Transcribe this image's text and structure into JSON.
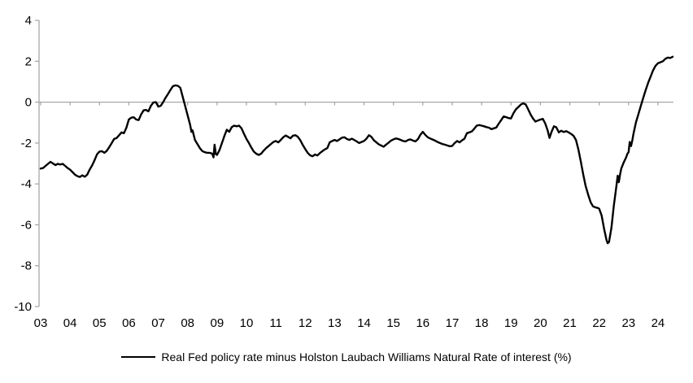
{
  "chart_data": {
    "type": "line",
    "title": "",
    "xlabel": "",
    "ylabel": "",
    "grid": "zero-line-only",
    "legend_position": "bottom-center",
    "background_color": "#ffffff",
    "axis_color": "#a8a8a8",
    "text_color": "#000000",
    "ylim": [
      -10,
      4
    ],
    "xlim": [
      2003.0,
      2024.58
    ],
    "y_ticks": [
      4,
      2,
      0,
      -2,
      -4,
      -6,
      -8,
      -10
    ],
    "x_tick_labels": [
      "03",
      "04",
      "05",
      "06",
      "07",
      "08",
      "09",
      "10",
      "11",
      "12",
      "13",
      "14",
      "15",
      "16",
      "17",
      "18",
      "19",
      "20",
      "21",
      "22",
      "23",
      "24"
    ],
    "series": [
      {
        "name": "Real Fed policy rate minus Holston Laubach Williams Natural Rate of interest (%)",
        "color": "#000000",
        "points": [
          [
            2003.0,
            -3.25
          ],
          [
            2003.083,
            -3.22
          ],
          [
            2003.167,
            -3.12
          ],
          [
            2003.25,
            -3.02
          ],
          [
            2003.333,
            -2.92
          ],
          [
            2003.417,
            -3.0
          ],
          [
            2003.5,
            -3.08
          ],
          [
            2003.583,
            -3.02
          ],
          [
            2003.667,
            -3.05
          ],
          [
            2003.75,
            -3.02
          ],
          [
            2003.833,
            -3.12
          ],
          [
            2003.917,
            -3.22
          ],
          [
            2004.0,
            -3.3
          ],
          [
            2004.083,
            -3.42
          ],
          [
            2004.167,
            -3.55
          ],
          [
            2004.25,
            -3.62
          ],
          [
            2004.333,
            -3.66
          ],
          [
            2004.417,
            -3.58
          ],
          [
            2004.5,
            -3.65
          ],
          [
            2004.583,
            -3.55
          ],
          [
            2004.667,
            -3.3
          ],
          [
            2004.75,
            -3.1
          ],
          [
            2004.833,
            -2.85
          ],
          [
            2004.917,
            -2.55
          ],
          [
            2005.0,
            -2.42
          ],
          [
            2005.083,
            -2.4
          ],
          [
            2005.167,
            -2.48
          ],
          [
            2005.25,
            -2.38
          ],
          [
            2005.333,
            -2.2
          ],
          [
            2005.417,
            -2.0
          ],
          [
            2005.5,
            -1.8
          ],
          [
            2005.583,
            -1.76
          ],
          [
            2005.667,
            -1.62
          ],
          [
            2005.75,
            -1.48
          ],
          [
            2005.833,
            -1.52
          ],
          [
            2005.917,
            -1.25
          ],
          [
            2006.0,
            -0.85
          ],
          [
            2006.083,
            -0.76
          ],
          [
            2006.167,
            -0.74
          ],
          [
            2006.25,
            -0.85
          ],
          [
            2006.333,
            -0.88
          ],
          [
            2006.417,
            -0.6
          ],
          [
            2006.5,
            -0.4
          ],
          [
            2006.583,
            -0.38
          ],
          [
            2006.667,
            -0.45
          ],
          [
            2006.75,
            -0.18
          ],
          [
            2006.833,
            -0.02
          ],
          [
            2006.917,
            0.0
          ],
          [
            2007.0,
            -0.22
          ],
          [
            2007.083,
            -0.18
          ],
          [
            2007.167,
            0.0
          ],
          [
            2007.25,
            0.22
          ],
          [
            2007.333,
            0.4
          ],
          [
            2007.417,
            0.6
          ],
          [
            2007.5,
            0.78
          ],
          [
            2007.583,
            0.82
          ],
          [
            2007.667,
            0.8
          ],
          [
            2007.75,
            0.7
          ],
          [
            2007.833,
            0.25
          ],
          [
            2007.917,
            -0.2
          ],
          [
            2008.0,
            -0.65
          ],
          [
            2008.083,
            -1.1
          ],
          [
            2008.13,
            -1.45
          ],
          [
            2008.167,
            -1.38
          ],
          [
            2008.25,
            -1.85
          ],
          [
            2008.333,
            -2.05
          ],
          [
            2008.417,
            -2.25
          ],
          [
            2008.5,
            -2.4
          ],
          [
            2008.583,
            -2.45
          ],
          [
            2008.667,
            -2.48
          ],
          [
            2008.75,
            -2.48
          ],
          [
            2008.833,
            -2.52
          ],
          [
            2008.88,
            -2.7
          ],
          [
            2008.917,
            -2.08
          ],
          [
            2008.96,
            -2.55
          ],
          [
            2009.0,
            -2.58
          ],
          [
            2009.083,
            -2.35
          ],
          [
            2009.167,
            -2.0
          ],
          [
            2009.25,
            -1.65
          ],
          [
            2009.333,
            -1.35
          ],
          [
            2009.417,
            -1.45
          ],
          [
            2009.5,
            -1.22
          ],
          [
            2009.583,
            -1.15
          ],
          [
            2009.667,
            -1.18
          ],
          [
            2009.75,
            -1.15
          ],
          [
            2009.833,
            -1.28
          ],
          [
            2009.917,
            -1.55
          ],
          [
            2010.0,
            -1.8
          ],
          [
            2010.083,
            -2.0
          ],
          [
            2010.167,
            -2.22
          ],
          [
            2010.25,
            -2.42
          ],
          [
            2010.333,
            -2.52
          ],
          [
            2010.417,
            -2.58
          ],
          [
            2010.5,
            -2.52
          ],
          [
            2010.583,
            -2.38
          ],
          [
            2010.667,
            -2.25
          ],
          [
            2010.75,
            -2.15
          ],
          [
            2010.833,
            -2.05
          ],
          [
            2010.917,
            -1.95
          ],
          [
            2011.0,
            -1.9
          ],
          [
            2011.083,
            -1.97
          ],
          [
            2011.167,
            -1.85
          ],
          [
            2011.25,
            -1.72
          ],
          [
            2011.333,
            -1.63
          ],
          [
            2011.417,
            -1.7
          ],
          [
            2011.5,
            -1.77
          ],
          [
            2011.583,
            -1.64
          ],
          [
            2011.667,
            -1.62
          ],
          [
            2011.75,
            -1.7
          ],
          [
            2011.833,
            -1.86
          ],
          [
            2011.917,
            -2.1
          ],
          [
            2012.0,
            -2.3
          ],
          [
            2012.083,
            -2.48
          ],
          [
            2012.167,
            -2.6
          ],
          [
            2012.25,
            -2.65
          ],
          [
            2012.333,
            -2.56
          ],
          [
            2012.417,
            -2.61
          ],
          [
            2012.5,
            -2.49
          ],
          [
            2012.583,
            -2.4
          ],
          [
            2012.667,
            -2.31
          ],
          [
            2012.75,
            -2.25
          ],
          [
            2012.833,
            -1.96
          ],
          [
            2012.917,
            -1.9
          ],
          [
            2013.0,
            -1.85
          ],
          [
            2013.083,
            -1.9
          ],
          [
            2013.167,
            -1.82
          ],
          [
            2013.25,
            -1.74
          ],
          [
            2013.333,
            -1.72
          ],
          [
            2013.417,
            -1.8
          ],
          [
            2013.5,
            -1.85
          ],
          [
            2013.583,
            -1.79
          ],
          [
            2013.667,
            -1.85
          ],
          [
            2013.75,
            -1.92
          ],
          [
            2013.833,
            -2.0
          ],
          [
            2013.917,
            -1.95
          ],
          [
            2014.0,
            -1.9
          ],
          [
            2014.083,
            -1.79
          ],
          [
            2014.167,
            -1.62
          ],
          [
            2014.25,
            -1.7
          ],
          [
            2014.333,
            -1.86
          ],
          [
            2014.417,
            -1.96
          ],
          [
            2014.5,
            -2.06
          ],
          [
            2014.583,
            -2.12
          ],
          [
            2014.667,
            -2.18
          ],
          [
            2014.75,
            -2.08
          ],
          [
            2014.833,
            -1.99
          ],
          [
            2014.917,
            -1.88
          ],
          [
            2015.0,
            -1.82
          ],
          [
            2015.083,
            -1.78
          ],
          [
            2015.167,
            -1.8
          ],
          [
            2015.25,
            -1.85
          ],
          [
            2015.333,
            -1.9
          ],
          [
            2015.417,
            -1.92
          ],
          [
            2015.5,
            -1.85
          ],
          [
            2015.583,
            -1.82
          ],
          [
            2015.667,
            -1.88
          ],
          [
            2015.75,
            -1.92
          ],
          [
            2015.833,
            -1.81
          ],
          [
            2015.917,
            -1.6
          ],
          [
            2016.0,
            -1.45
          ],
          [
            2016.083,
            -1.6
          ],
          [
            2016.167,
            -1.72
          ],
          [
            2016.25,
            -1.78
          ],
          [
            2016.333,
            -1.83
          ],
          [
            2016.417,
            -1.88
          ],
          [
            2016.5,
            -1.95
          ],
          [
            2016.583,
            -2.0
          ],
          [
            2016.667,
            -2.05
          ],
          [
            2016.75,
            -2.08
          ],
          [
            2016.833,
            -2.12
          ],
          [
            2016.917,
            -2.16
          ],
          [
            2017.0,
            -2.14
          ],
          [
            2017.083,
            -2.0
          ],
          [
            2017.167,
            -1.9
          ],
          [
            2017.25,
            -1.97
          ],
          [
            2017.333,
            -1.87
          ],
          [
            2017.417,
            -1.79
          ],
          [
            2017.5,
            -1.52
          ],
          [
            2017.583,
            -1.48
          ],
          [
            2017.667,
            -1.43
          ],
          [
            2017.75,
            -1.3
          ],
          [
            2017.833,
            -1.15
          ],
          [
            2017.917,
            -1.12
          ],
          [
            2018.0,
            -1.15
          ],
          [
            2018.083,
            -1.18
          ],
          [
            2018.167,
            -1.22
          ],
          [
            2018.25,
            -1.25
          ],
          [
            2018.333,
            -1.32
          ],
          [
            2018.417,
            -1.28
          ],
          [
            2018.5,
            -1.24
          ],
          [
            2018.583,
            -1.05
          ],
          [
            2018.667,
            -0.88
          ],
          [
            2018.75,
            -0.7
          ],
          [
            2018.833,
            -0.73
          ],
          [
            2018.917,
            -0.78
          ],
          [
            2019.0,
            -0.8
          ],
          [
            2019.083,
            -0.55
          ],
          [
            2019.167,
            -0.35
          ],
          [
            2019.25,
            -0.24
          ],
          [
            2019.333,
            -0.12
          ],
          [
            2019.417,
            -0.06
          ],
          [
            2019.5,
            -0.11
          ],
          [
            2019.583,
            -0.35
          ],
          [
            2019.667,
            -0.6
          ],
          [
            2019.75,
            -0.8
          ],
          [
            2019.833,
            -0.95
          ],
          [
            2019.917,
            -0.9
          ],
          [
            2020.0,
            -0.85
          ],
          [
            2020.083,
            -0.82
          ],
          [
            2020.167,
            -1.05
          ],
          [
            2020.25,
            -1.4
          ],
          [
            2020.31,
            -1.75
          ],
          [
            2020.38,
            -1.45
          ],
          [
            2020.46,
            -1.18
          ],
          [
            2020.54,
            -1.23
          ],
          [
            2020.63,
            -1.48
          ],
          [
            2020.71,
            -1.4
          ],
          [
            2020.79,
            -1.46
          ],
          [
            2020.88,
            -1.42
          ],
          [
            2020.96,
            -1.48
          ],
          [
            2021.04,
            -1.55
          ],
          [
            2021.13,
            -1.65
          ],
          [
            2021.21,
            -1.85
          ],
          [
            2021.29,
            -2.3
          ],
          [
            2021.38,
            -2.95
          ],
          [
            2021.46,
            -3.55
          ],
          [
            2021.54,
            -4.1
          ],
          [
            2021.63,
            -4.55
          ],
          [
            2021.71,
            -4.9
          ],
          [
            2021.79,
            -5.1
          ],
          [
            2021.88,
            -5.15
          ],
          [
            2021.96,
            -5.18
          ],
          [
            2022.0,
            -5.22
          ],
          [
            2022.083,
            -5.55
          ],
          [
            2022.167,
            -6.2
          ],
          [
            2022.25,
            -6.75
          ],
          [
            2022.29,
            -6.9
          ],
          [
            2022.333,
            -6.85
          ],
          [
            2022.417,
            -6.15
          ],
          [
            2022.5,
            -5.05
          ],
          [
            2022.583,
            -4.15
          ],
          [
            2022.63,
            -3.6
          ],
          [
            2022.667,
            -3.92
          ],
          [
            2022.71,
            -3.55
          ],
          [
            2022.75,
            -3.25
          ],
          [
            2022.833,
            -2.95
          ],
          [
            2022.917,
            -2.7
          ],
          [
            2022.96,
            -2.52
          ],
          [
            2023.0,
            -2.45
          ],
          [
            2023.04,
            -1.95
          ],
          [
            2023.083,
            -2.15
          ],
          [
            2023.13,
            -1.85
          ],
          [
            2023.167,
            -1.55
          ],
          [
            2023.25,
            -1.0
          ],
          [
            2023.333,
            -0.6
          ],
          [
            2023.417,
            -0.18
          ],
          [
            2023.5,
            0.22
          ],
          [
            2023.583,
            0.6
          ],
          [
            2023.667,
            0.95
          ],
          [
            2023.75,
            1.25
          ],
          [
            2023.833,
            1.55
          ],
          [
            2023.917,
            1.78
          ],
          [
            2024.0,
            1.9
          ],
          [
            2024.083,
            1.95
          ],
          [
            2024.167,
            2.0
          ],
          [
            2024.25,
            2.12
          ],
          [
            2024.333,
            2.18
          ],
          [
            2024.417,
            2.16
          ],
          [
            2024.5,
            2.22
          ]
        ]
      }
    ]
  }
}
